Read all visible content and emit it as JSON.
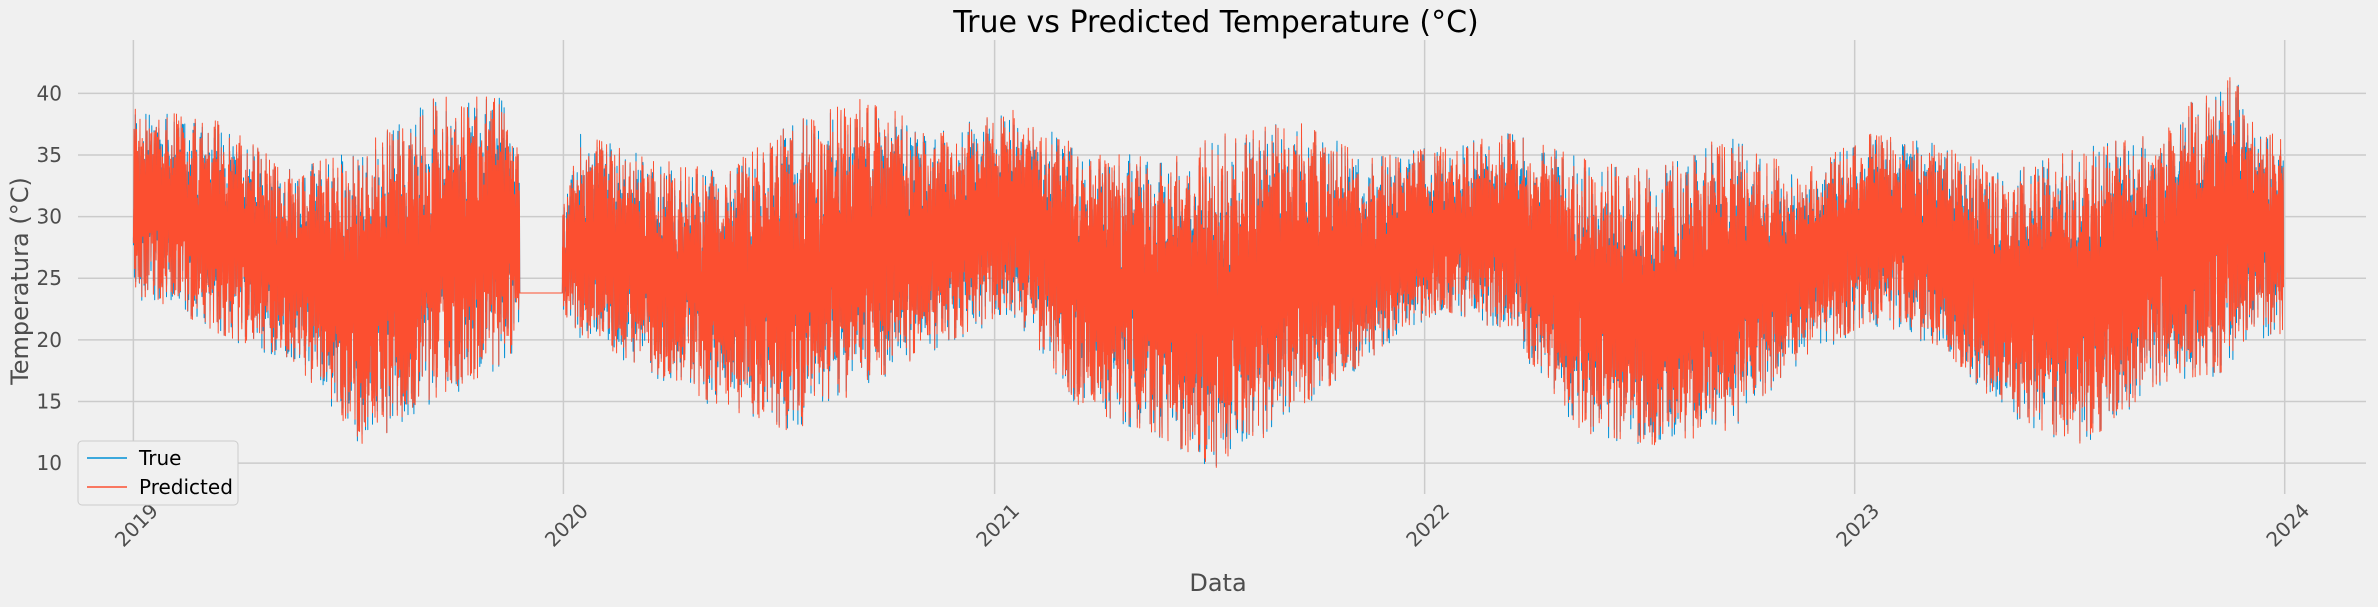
{
  "chart_data": {
    "type": "line",
    "title": "True vs Predicted Temperature (°C)",
    "xlabel": "Data",
    "ylabel": "Temperatura (°C)",
    "x_range": [
      "2018-11-15",
      "2024-03-10"
    ],
    "xlim": [
      "2018-11-15",
      "2024-03-10"
    ],
    "ylim": [
      7.5,
      44
    ],
    "x_ticks": [
      "2019",
      "2020",
      "2021",
      "2022",
      "2023",
      "2024"
    ],
    "x_tick_dates": [
      "2019-01-01",
      "2020-01-01",
      "2021-01-01",
      "2022-01-01",
      "2023-01-01",
      "2024-01-01"
    ],
    "y_ticks": [
      10,
      15,
      20,
      25,
      30,
      35,
      40
    ],
    "y_tick_labels": [
      "10",
      "15",
      "20",
      "25",
      "30",
      "35",
      "40"
    ],
    "grid": true,
    "legend_position": "lower-left",
    "series": [
      {
        "name": "True",
        "color": "#008fd5",
        "note_profile": "hourly values, approximate envelope by month",
        "monthly_envelope": [
          {
            "month": "2019-01",
            "min": 23,
            "max": 39
          },
          {
            "month": "2019-03",
            "min": 20,
            "max": 38
          },
          {
            "month": "2019-05",
            "min": 18,
            "max": 34
          },
          {
            "month": "2019-07",
            "min": 11,
            "max": 36
          },
          {
            "month": "2019-09",
            "min": 14,
            "max": 40
          },
          {
            "month": "2019-11",
            "min": 18,
            "max": 40
          },
          {
            "month": "2019-12",
            "min": 23.8,
            "max": 23.8
          },
          {
            "month": "2020-01",
            "min": 20,
            "max": 37
          },
          {
            "month": "2020-03",
            "min": 17,
            "max": 35
          },
          {
            "month": "2020-05",
            "min": 14,
            "max": 34
          },
          {
            "month": "2020-07",
            "min": 12,
            "max": 38
          },
          {
            "month": "2020-09",
            "min": 16,
            "max": 40
          },
          {
            "month": "2020-11",
            "min": 19,
            "max": 37
          },
          {
            "month": "2021-01",
            "min": 22,
            "max": 39
          },
          {
            "month": "2021-03",
            "min": 14,
            "max": 36
          },
          {
            "month": "2021-05",
            "min": 12,
            "max": 35
          },
          {
            "month": "2021-07",
            "min": 8.8,
            "max": 37
          },
          {
            "month": "2021-09",
            "min": 14,
            "max": 38
          },
          {
            "month": "2021-11",
            "min": 18,
            "max": 35
          },
          {
            "month": "2022-01",
            "min": 22,
            "max": 36
          },
          {
            "month": "2022-03",
            "min": 20,
            "max": 37
          },
          {
            "month": "2022-05",
            "min": 12,
            "max": 35
          },
          {
            "month": "2022-07",
            "min": 11,
            "max": 34
          },
          {
            "month": "2022-09",
            "min": 12,
            "max": 37
          },
          {
            "month": "2022-11",
            "min": 18,
            "max": 34
          },
          {
            "month": "2023-01",
            "min": 21,
            "max": 37
          },
          {
            "month": "2023-03",
            "min": 19,
            "max": 36
          },
          {
            "month": "2023-05",
            "min": 13,
            "max": 34
          },
          {
            "month": "2023-07",
            "min": 11,
            "max": 36
          },
          {
            "month": "2023-09",
            "min": 16,
            "max": 37
          },
          {
            "month": "2023-11",
            "min": 17,
            "max": 42.5
          },
          {
            "month": "2023-12",
            "min": 20,
            "max": 37
          }
        ]
      },
      {
        "name": "Predicted",
        "color": "#fc4f30",
        "note_profile": "closely tracks True series"
      }
    ]
  }
}
